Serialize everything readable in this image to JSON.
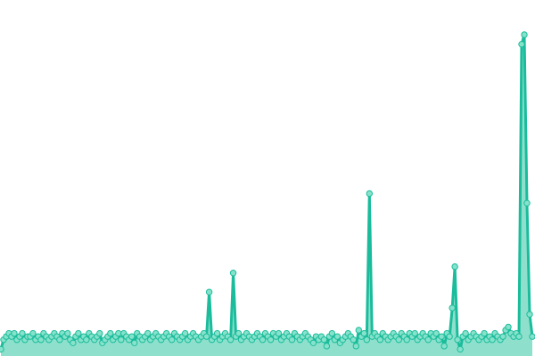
{
  "chart_data": {
    "type": "area",
    "title": "",
    "xlabel": "",
    "ylabel": "",
    "axes_visible": false,
    "grid": false,
    "legend": "none",
    "ylim": [
      0,
      100
    ],
    "colors": {
      "line": "#1abc9c",
      "fill": "#8ee0cc",
      "marker_fill": "#86e2ca",
      "marker_stroke": "#1abc9c"
    },
    "series": [
      {
        "values": [
          1,
          4,
          5,
          6,
          5,
          6,
          4,
          5,
          6,
          4,
          5,
          5,
          6,
          4,
          5,
          4,
          6,
          5,
          4,
          5,
          6,
          5,
          4,
          6,
          5,
          6,
          4,
          3,
          5,
          6,
          4,
          5,
          4,
          6,
          5,
          4,
          5,
          6,
          3,
          4,
          5,
          6,
          4,
          5,
          6,
          4,
          6,
          5,
          4,
          5,
          3,
          6,
          5,
          4,
          5,
          6,
          4,
          5,
          6,
          5,
          4,
          5,
          6,
          5,
          4,
          6,
          5,
          4,
          5,
          6,
          4,
          5,
          6,
          5,
          4,
          5,
          6,
          5,
          19,
          4,
          5,
          6,
          4,
          5,
          6,
          5,
          4,
          25,
          5,
          6,
          4,
          5,
          6,
          5,
          4,
          5,
          6,
          5,
          4,
          6,
          5,
          4,
          6,
          5,
          6,
          4,
          5,
          6,
          5,
          4,
          6,
          5,
          4,
          5,
          6,
          5,
          4,
          3,
          5,
          4,
          5,
          4,
          2,
          5,
          6,
          4,
          5,
          3,
          4,
          5,
          6,
          5,
          4,
          2,
          7,
          5,
          6,
          4,
          50,
          5,
          6,
          5,
          4,
          6,
          5,
          4,
          5,
          6,
          5,
          4,
          6,
          5,
          4,
          6,
          5,
          6,
          4,
          5,
          6,
          5,
          4,
          6,
          5,
          6,
          4,
          5,
          2,
          6,
          5,
          14,
          27,
          4,
          1,
          5,
          6,
          4,
          5,
          6,
          5,
          4,
          5,
          6,
          4,
          5,
          4,
          6,
          5,
          4,
          5,
          7,
          8,
          6,
          5,
          6,
          5,
          97,
          100,
          47,
          12,
          5
        ]
      }
    ]
  }
}
